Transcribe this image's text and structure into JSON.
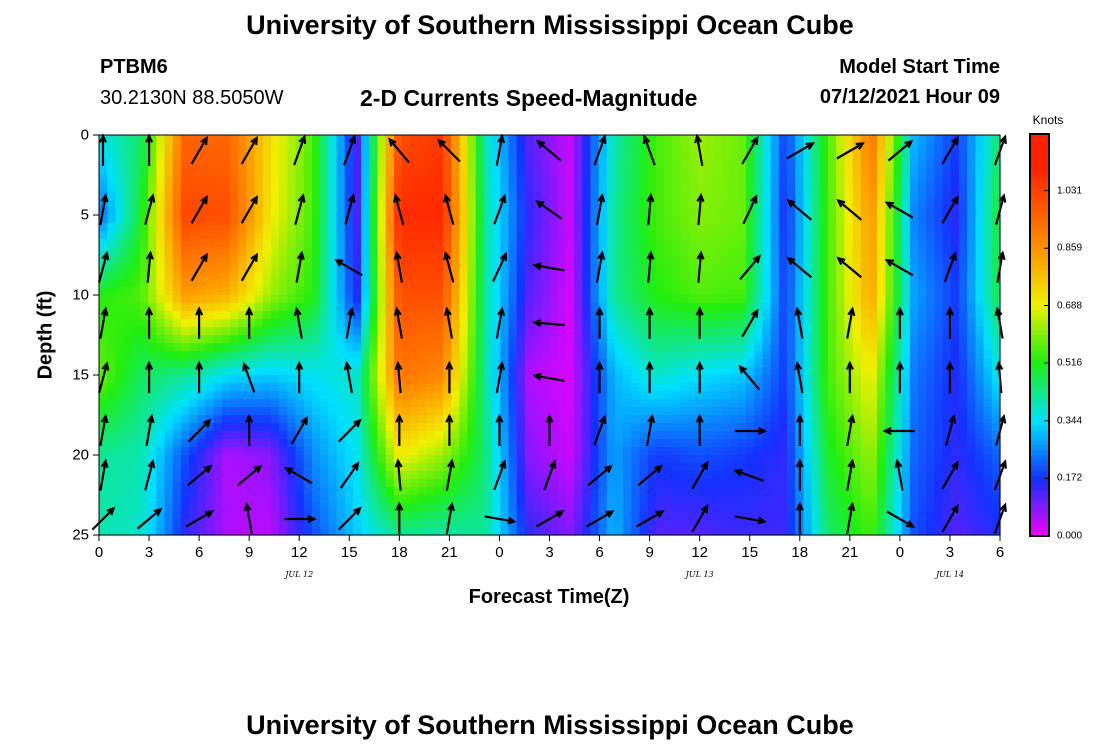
{
  "header": {
    "title": "University of Southern Mississippi Ocean Cube",
    "station_id": "PTBM6",
    "coordinates": "30.2130N  88.5050W",
    "plot_title": "2-D Currents Speed-Magnitude",
    "model_label": "Model Start Time",
    "model_time": "07/12/2021 Hour 09"
  },
  "footer": {
    "title": "University of Southern Mississippi Ocean Cube"
  },
  "colors": {
    "magenta": "#f000ff",
    "blue": "#1530ff",
    "cyan": "#00e0ff",
    "green": "#20ee10",
    "yellow": "#f0f000",
    "orange": "#ff9000",
    "red": "#ff2000"
  },
  "chart_data": {
    "type": "heatmap",
    "title": "2-D Currents Speed-Magnitude",
    "xlabel": "Forecast Time(Z)",
    "ylabel": "Depth (ft)",
    "x_range_hours": [
      0,
      54
    ],
    "ylim": [
      0,
      25
    ],
    "x_ticks": [
      "0",
      "3",
      "6",
      "9",
      "12",
      "15",
      "18",
      "21",
      "0",
      "3",
      "6",
      "9",
      "12",
      "15",
      "18",
      "21",
      "0",
      "3",
      "6"
    ],
    "y_ticks": [
      "0",
      "5",
      "10",
      "15",
      "20",
      "25"
    ],
    "date_labels": [
      {
        "hour": 12,
        "text": "JUL 12"
      },
      {
        "hour": 36,
        "text": "JUL 13"
      },
      {
        "hour": 51,
        "text": "JUL 14"
      }
    ],
    "colorbar": {
      "unit": "Knots",
      "ticks": [
        "1.031",
        "0.859",
        "0.688",
        "0.516",
        "0.344",
        "0.172",
        "0.000"
      ],
      "range": [
        0.0,
        1.2
      ]
    },
    "depth_layers_ft": [
      0,
      5,
      10,
      15,
      20,
      25
    ],
    "speed_knots": [
      [
        0.36,
        0.45,
        0.95,
        0.95,
        0.72,
        0.55,
        0.12,
        1.0,
        1.05,
        0.4,
        0.12,
        0.03,
        0.4,
        0.55,
        0.62,
        0.58,
        0.18,
        0.55,
        0.92,
        0.3,
        0.18,
        0.45
      ],
      [
        0.22,
        0.5,
        1.02,
        1.0,
        0.7,
        0.55,
        0.12,
        1.08,
        1.08,
        0.42,
        0.15,
        0.03,
        0.42,
        0.55,
        0.6,
        0.58,
        0.16,
        0.55,
        0.85,
        0.25,
        0.15,
        0.5
      ],
      [
        0.52,
        0.56,
        0.84,
        0.8,
        0.62,
        0.52,
        0.15,
        1.0,
        1.0,
        0.42,
        0.12,
        0.02,
        0.42,
        0.52,
        0.56,
        0.55,
        0.18,
        0.55,
        0.82,
        0.28,
        0.18,
        0.48
      ],
      [
        0.58,
        0.46,
        0.42,
        0.34,
        0.32,
        0.35,
        0.38,
        0.92,
        0.88,
        0.42,
        0.05,
        0.02,
        0.3,
        0.38,
        0.34,
        0.32,
        0.18,
        0.55,
        0.7,
        0.24,
        0.16,
        0.36
      ],
      [
        0.42,
        0.4,
        0.2,
        0.05,
        0.08,
        0.26,
        0.35,
        0.7,
        0.62,
        0.45,
        0.08,
        0.03,
        0.28,
        0.18,
        0.2,
        0.18,
        0.15,
        0.5,
        0.62,
        0.22,
        0.15,
        0.22
      ],
      [
        0.4,
        0.38,
        0.15,
        0.05,
        0.04,
        0.2,
        0.32,
        0.42,
        0.4,
        0.42,
        0.15,
        0.08,
        0.3,
        0.12,
        0.12,
        0.14,
        0.14,
        0.45,
        0.55,
        0.2,
        0.12,
        0.16
      ]
    ],
    "vector_rows_depth_ft": [
      1,
      4.7,
      8.3,
      11.8,
      15.2,
      18.5,
      21.3,
      24
    ],
    "vector_cols_hours": [
      0,
      3,
      6,
      9,
      12,
      15,
      18,
      21,
      24,
      27,
      30,
      33,
      36,
      39,
      42,
      45,
      48,
      51,
      54
    ],
    "vector_angles_deg": [
      [
        90,
        90,
        60,
        60,
        70,
        70,
        130,
        135,
        80,
        140,
        70,
        110,
        100,
        60,
        30,
        30,
        40,
        60,
        70
      ],
      [
        80,
        75,
        60,
        60,
        75,
        75,
        105,
        105,
        70,
        145,
        80,
        85,
        85,
        65,
        140,
        140,
        150,
        60,
        75
      ],
      [
        75,
        85,
        60,
        60,
        80,
        150,
        100,
        105,
        65,
        170,
        80,
        85,
        85,
        50,
        140,
        140,
        150,
        70,
        80
      ],
      [
        80,
        90,
        90,
        90,
        100,
        80,
        100,
        100,
        80,
        175,
        90,
        90,
        90,
        60,
        100,
        80,
        90,
        90,
        100
      ],
      [
        75,
        90,
        90,
        110,
        90,
        100,
        95,
        90,
        80,
        170,
        90,
        90,
        90,
        130,
        100,
        90,
        90,
        90,
        95
      ],
      [
        80,
        80,
        45,
        90,
        60,
        45,
        90,
        90,
        90,
        90,
        70,
        80,
        90,
        0,
        90,
        80,
        180,
        75,
        75
      ],
      [
        80,
        75,
        40,
        40,
        150,
        55,
        95,
        80,
        70,
        70,
        40,
        40,
        60,
        160,
        90,
        80,
        100,
        60,
        70
      ],
      [
        45,
        40,
        30,
        100,
        0,
        45,
        90,
        80,
        350,
        30,
        30,
        30,
        60,
        350,
        90,
        80,
        330,
        60,
        70
      ]
    ]
  }
}
